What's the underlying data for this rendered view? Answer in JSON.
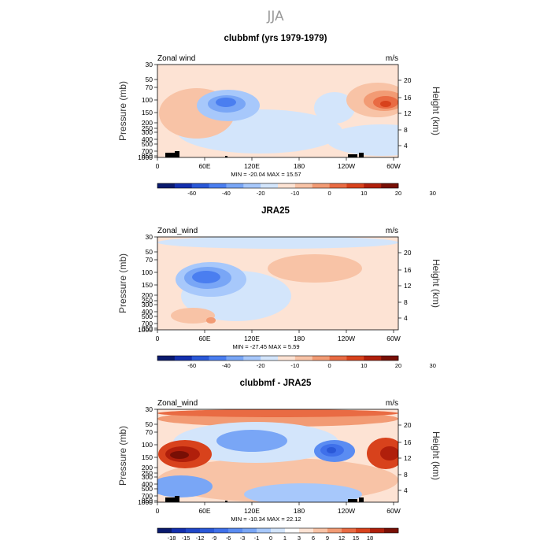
{
  "figure": {
    "title": "JJA"
  },
  "chart_data": [
    {
      "type": "heatmap",
      "title": "clubbmf (yrs 1979-1979)",
      "left_label": "Zonal wind",
      "right_label": "m/s",
      "ylabel": "Pressure (mb)",
      "ylabel_right": "Height (km)",
      "x_ticks": [
        "0",
        "60E",
        "120E",
        "180",
        "120W",
        "60W"
      ],
      "y_ticks": [
        "30",
        "50",
        "70",
        "100",
        "150",
        "200",
        "250",
        "300",
        "400",
        "500",
        "700",
        "850",
        "1000"
      ],
      "y_ticks_right": [
        "20",
        "16",
        "12",
        "8",
        "4"
      ],
      "stats": "MIN = -20.04   MAX =  15.57",
      "colorbar_ticks": [
        "-60",
        "-40",
        "-20",
        "-10",
        "0",
        "10",
        "20",
        "30"
      ],
      "colors": [
        "#0a1a6e",
        "#132fae",
        "#2a58d8",
        "#4a7ef0",
        "#79a6f6",
        "#a7c8fb",
        "#d3e5fb",
        "#fde3d4",
        "#f8c3a6",
        "#f29b74",
        "#e96b43",
        "#d8421c",
        "#b01f0b",
        "#780f05"
      ]
    },
    {
      "type": "heatmap",
      "title": "JRA25",
      "left_label": "Zonal_wind",
      "right_label": "m/s",
      "ylabel": "Pressure (mb)",
      "ylabel_right": "Height (km)",
      "x_ticks": [
        "0",
        "60E",
        "120E",
        "180",
        "120W",
        "60W"
      ],
      "y_ticks": [
        "30",
        "50",
        "70",
        "100",
        "150",
        "200",
        "250",
        "300",
        "400",
        "500",
        "700",
        "850",
        "1000"
      ],
      "y_ticks_right": [
        "20",
        "16",
        "12",
        "8",
        "4"
      ],
      "stats": "MIN = -27.45   MAX =   5.59",
      "colorbar_ticks": [
        "-60",
        "-40",
        "-20",
        "-10",
        "0",
        "10",
        "20",
        "30"
      ],
      "colors": [
        "#0a1a6e",
        "#132fae",
        "#2a58d8",
        "#4a7ef0",
        "#79a6f6",
        "#a7c8fb",
        "#d3e5fb",
        "#fde3d4",
        "#f8c3a6",
        "#f29b74",
        "#e96b43",
        "#d8421c",
        "#b01f0b",
        "#780f05"
      ]
    },
    {
      "type": "heatmap",
      "title": "clubbmf - JRA25",
      "left_label": "Zonal_wind",
      "right_label": "m/s",
      "ylabel": "Pressure (mb)",
      "ylabel_right": "Height (km)",
      "x_ticks": [
        "0",
        "60E",
        "120E",
        "180",
        "120W",
        "60W"
      ],
      "y_ticks": [
        "30",
        "50",
        "70",
        "100",
        "150",
        "200",
        "250",
        "300",
        "400",
        "500",
        "700",
        "850",
        "1000"
      ],
      "y_ticks_right": [
        "20",
        "16",
        "12",
        "8",
        "4"
      ],
      "stats": "MIN = -10.34   MAX =  22.12",
      "colorbar_ticks": [
        "-18",
        "-15",
        "-12",
        "-9",
        "-6",
        "-3",
        "-1",
        "0",
        "1",
        "3",
        "6",
        "9",
        "12",
        "15",
        "18"
      ],
      "colors": [
        "#0a1a6e",
        "#132fae",
        "#1f46c8",
        "#2a58d8",
        "#3f70ea",
        "#5a8cf2",
        "#79a6f6",
        "#a7c8fb",
        "#d3e5fb",
        "#ffffff",
        "#fde3d4",
        "#f8c3a6",
        "#f29b74",
        "#e96b43",
        "#d8421c",
        "#b01f0b",
        "#780f05"
      ]
    }
  ]
}
